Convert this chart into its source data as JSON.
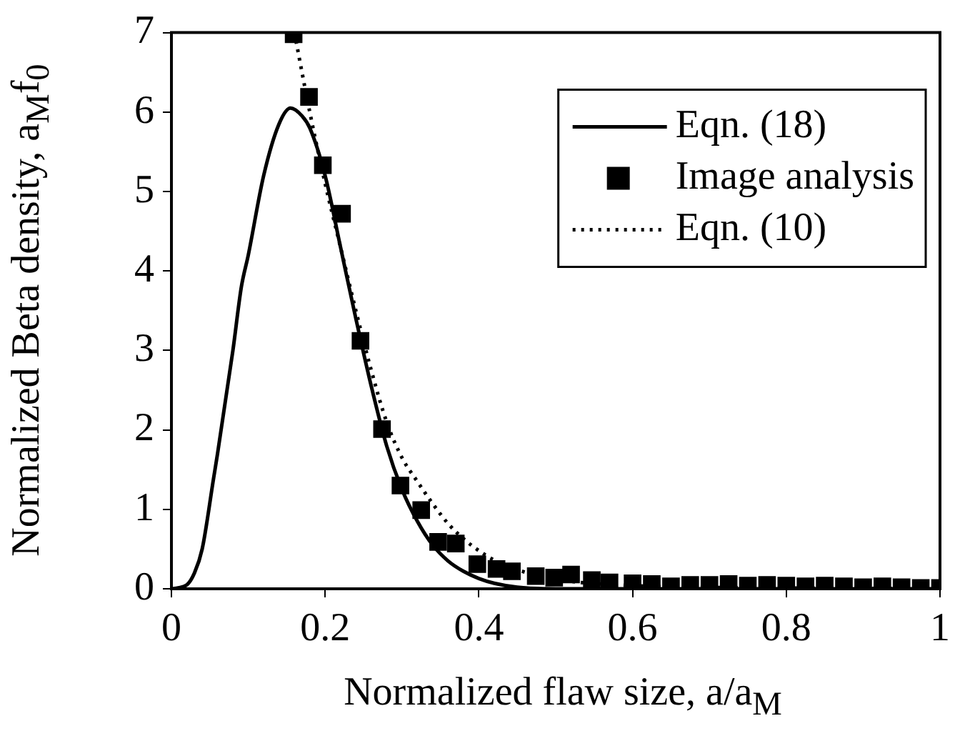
{
  "chart_data": {
    "type": "line",
    "xlabel": "Normalized flaw size, a/a$_{M}$",
    "ylabel": "Normalized Beta density, a$_{M}$f$_{0}$",
    "xlim": [
      0,
      1
    ],
    "xticks": [
      0,
      0.2,
      0.4,
      0.6,
      0.8,
      {
        "value": 1,
        "label": "1"
      }
    ],
    "ylim": [
      0,
      7
    ],
    "yticks": [
      0,
      1,
      2,
      3,
      4,
      5,
      6,
      7
    ],
    "grid": false,
    "legend": "top right",
    "series": [
      {
        "name": "Eqn. (18)",
        "type": "line",
        "color": "#000000",
        "line_style": "solid",
        "marker": "none",
        "x": [
          0,
          0.02,
          0.03,
          0.04,
          0.055,
          0.06,
          0.08,
          0.091,
          0.1,
          0.12,
          0.14,
          0.155,
          0.17,
          0.18,
          0.2,
          0.22,
          0.24,
          0.26,
          0.28,
          0.3,
          0.32,
          0.34,
          0.36,
          0.38,
          0.4,
          0.42,
          0.45,
          0.5,
          1
        ],
        "values": [
          0,
          0.05,
          0.2,
          0.5,
          1.4,
          1.7,
          3.0,
          3.8,
          4.2,
          5.2,
          5.85,
          6.05,
          5.95,
          5.8,
          5.2,
          4.3,
          3.4,
          2.55,
          1.8,
          1.25,
          0.85,
          0.55,
          0.35,
          0.22,
          0.13,
          0.07,
          0.02,
          0,
          0
        ]
      },
      {
        "name": "Image analysis",
        "type": "scatter",
        "color": "#000000",
        "marker": "square",
        "x": [
          0.159,
          0.179,
          0.197,
          0.222,
          0.246,
          0.274,
          0.298,
          0.325,
          0.347,
          0.37,
          0.398,
          0.423,
          0.443,
          0.474,
          0.498,
          0.52,
          0.547,
          0.57,
          0.6,
          0.625,
          0.65,
          0.675,
          0.7,
          0.725,
          0.75,
          0.775,
          0.8,
          0.825,
          0.85,
          0.875,
          0.9,
          0.925,
          0.95,
          0.975,
          1.0
        ],
        "values": [
          6.98,
          6.19,
          5.33,
          4.72,
          3.12,
          2.01,
          1.3,
          0.99,
          0.59,
          0.57,
          0.31,
          0.25,
          0.22,
          0.16,
          0.14,
          0.18,
          0.11,
          0.08,
          0.07,
          0.06,
          0.03,
          0.05,
          0.05,
          0.06,
          0.04,
          0.05,
          0.04,
          0.03,
          0.04,
          0.03,
          0.02,
          0.03,
          0.02,
          0.01,
          0.01
        ]
      },
      {
        "name": "Eqn. (10)",
        "type": "line",
        "color": "#000000",
        "line_style": "dotted",
        "marker": "none",
        "x": [
          0.16,
          0.18,
          0.2,
          0.22,
          0.24,
          0.26,
          0.28,
          0.3,
          0.32,
          0.34,
          0.36,
          0.38,
          0.4,
          0.42,
          0.45,
          0.5,
          0.6,
          0.8,
          1
        ],
        "values": [
          7.0,
          6.0,
          5.1,
          4.3,
          3.5,
          2.75,
          2.1,
          1.65,
          1.35,
          1.07,
          0.82,
          0.63,
          0.48,
          0.36,
          0.24,
          0.12,
          0.04,
          0.01,
          0
        ]
      }
    ]
  }
}
